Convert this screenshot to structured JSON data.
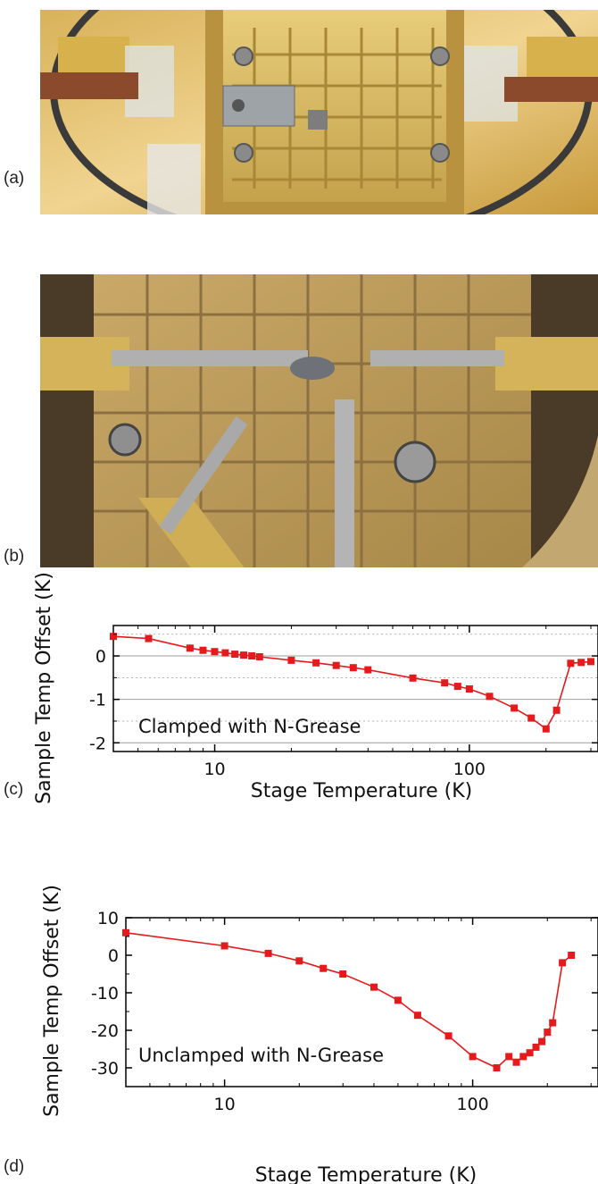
{
  "figure": {
    "panels": [
      {
        "label": "(a)"
      },
      {
        "label": "(b)"
      },
      {
        "label": "(c)"
      },
      {
        "label": "(d)"
      }
    ]
  },
  "photos": [
    {
      "panel": "(a)",
      "subject": "gold-plated sample stage with two probe arms"
    },
    {
      "panel": "(b)",
      "subject": "sample stage top view with probe tips contacting sample"
    }
  ],
  "colors": {
    "series": "#e41a1c",
    "gold": "#c9a54a",
    "grid": "#9e9e9e"
  },
  "chart_data": [
    {
      "type": "line",
      "panel": "(c)",
      "xscale": "log",
      "xlim": [
        4,
        320
      ],
      "ylim": [
        -2.2,
        0.7
      ],
      "grid": true,
      "xlabel": "Stage Temperature (K)",
      "ylabel": "Sample Temp Offset (K)",
      "annotation": "Clamped with N-Grease",
      "xticks": [
        {
          "value": 10,
          "label": "10"
        },
        {
          "value": 100,
          "label": "100"
        }
      ],
      "yticks": [
        {
          "value": 0,
          "label": "0"
        },
        {
          "value": -1,
          "label": "-1"
        },
        {
          "value": -2,
          "label": "-2"
        }
      ],
      "series": [
        {
          "x": [
            4,
            5.5,
            8,
            9,
            10,
            11,
            12,
            13,
            14,
            15,
            20,
            25,
            30,
            35,
            40,
            60,
            80,
            90,
            100,
            120,
            150,
            175,
            200,
            220,
            250,
            275,
            300
          ],
          "y": [
            0.45,
            0.4,
            0.18,
            0.13,
            0.1,
            0.07,
            0.04,
            0.02,
            0.0,
            -0.02,
            -0.1,
            -0.16,
            -0.22,
            -0.27,
            -0.32,
            -0.51,
            -0.62,
            -0.7,
            -0.76,
            -0.93,
            -1.2,
            -1.43,
            -1.68,
            -1.25,
            -0.17,
            -0.15,
            -0.13
          ]
        }
      ]
    },
    {
      "type": "line",
      "panel": "(d)",
      "xscale": "log",
      "xlim": [
        4,
        320
      ],
      "ylim": [
        -35,
        10
      ],
      "grid": false,
      "xlabel": "Stage Temperature (K)",
      "ylabel": "Sample Temp Offset (K)",
      "annotation": "Unclamped with N-Grease",
      "xticks": [
        {
          "value": 10,
          "label": "10"
        },
        {
          "value": 100,
          "label": "100"
        }
      ],
      "yticks": [
        {
          "value": 10,
          "label": "10"
        },
        {
          "value": 0,
          "label": "0"
        },
        {
          "value": -10,
          "label": "-10"
        },
        {
          "value": -20,
          "label": "-20"
        },
        {
          "value": -30,
          "label": "-30"
        }
      ],
      "series": [
        {
          "x": [
            4,
            10,
            15,
            20,
            25,
            30,
            40,
            50,
            60,
            80,
            100,
            125,
            140,
            150,
            160,
            170,
            180,
            190,
            200,
            210,
            230,
            250
          ],
          "y": [
            6,
            2.5,
            0.5,
            -1.5,
            -3.5,
            -5,
            -8.5,
            -12,
            -16,
            -21.5,
            -27,
            -30,
            -27,
            -28.5,
            -27,
            -26,
            -24.5,
            -23,
            -20.5,
            -18,
            -2,
            0
          ]
        }
      ]
    }
  ]
}
